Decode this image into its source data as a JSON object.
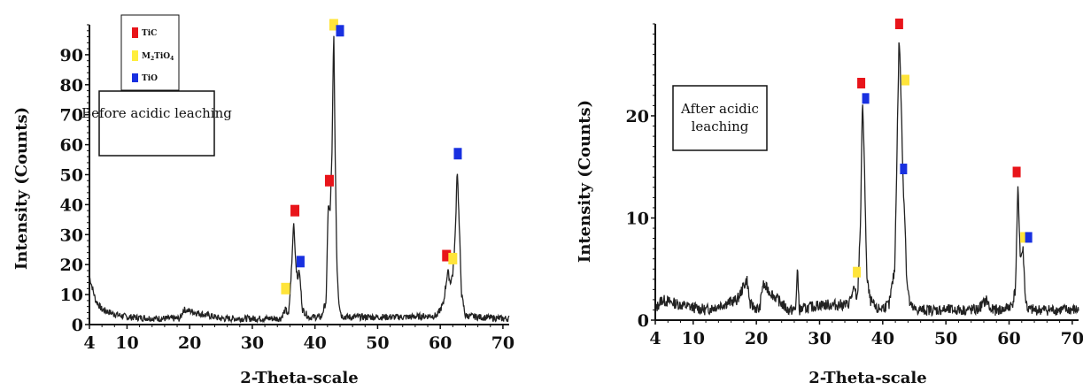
{
  "chart_data": [
    {
      "type": "line",
      "annotation": [
        "Before acidic leaching"
      ],
      "xlabel": "2-Theta-scale",
      "ylabel": "Intensity (Counts)",
      "xlim": [
        4,
        71
      ],
      "ylim": [
        0,
        100
      ],
      "xticks": [
        "4",
        "10",
        "20",
        "30",
        "40",
        "50",
        "60",
        "70"
      ],
      "yticks": [
        "0",
        "10",
        "20",
        "30",
        "40",
        "50",
        "60",
        "70",
        "80",
        "90"
      ],
      "legend": {
        "position": "top-left",
        "entries": [
          {
            "label_main": "TiC",
            "label_sub": "",
            "color": "#e8141a"
          },
          {
            "label_main": "M",
            "label_sub": "2",
            "label_main2": "TiO",
            "label_sub2": "4",
            "color": "#ffee3c"
          },
          {
            "label_main": "TiO",
            "label_sub": "",
            "color": "#1830e0"
          }
        ]
      },
      "series": [
        {
          "line_color": "#222222",
          "x": [
            4,
            4.5,
            5,
            6,
            8,
            10,
            15,
            18.5,
            19,
            25,
            30,
            34.5,
            35.3,
            35.8,
            36.3,
            36.6,
            36.9,
            37.2,
            37.5,
            38,
            39,
            41,
            41.8,
            42.1,
            42.4,
            42.7,
            43.0,
            43.2,
            43.5,
            43.8,
            44.2,
            45,
            50,
            55,
            59.5,
            60.5,
            61.2,
            61.6,
            62.0,
            62.4,
            62.7,
            63.0,
            63.4,
            64,
            66,
            70,
            71
          ],
          "y": [
            16,
            12,
            8,
            5,
            3.5,
            2.5,
            2,
            2,
            5,
            2,
            2,
            2,
            5,
            3,
            20,
            35,
            22,
            15,
            18,
            5,
            2.5,
            2.5,
            8,
            40,
            37,
            55,
            99,
            60,
            20,
            8,
            3,
            2.5,
            2.5,
            2.5,
            3,
            7,
            18,
            14,
            17,
            30,
            53,
            35,
            10,
            3,
            2.5,
            2,
            2
          ]
        }
      ],
      "markers": [
        {
          "label": "TiC",
          "x": 36.8,
          "y": 38
        },
        {
          "label": "TiO",
          "x": 37.7,
          "y": 21
        },
        {
          "label": "M2TiO4",
          "x": 35.3,
          "y": 12
        },
        {
          "label": "TiC",
          "x": 42.3,
          "y": 48
        },
        {
          "label": "M2TiO4",
          "x": 43.0,
          "y": 100
        },
        {
          "label": "TiO",
          "x": 44.0,
          "y": 98
        },
        {
          "label": "TiC",
          "x": 61.0,
          "y": 23
        },
        {
          "label": "M2TiO4",
          "x": 62.0,
          "y": 22
        },
        {
          "label": "TiO",
          "x": 62.8,
          "y": 57
        }
      ]
    },
    {
      "type": "line",
      "annotation": [
        "After acidic",
        "leaching"
      ],
      "xlabel": "2-Theta-scale",
      "ylabel": "Intensity (Counts)",
      "xlim": [
        4,
        71
      ],
      "ylim": [
        0,
        29
      ],
      "xticks": [
        "4",
        "10",
        "20",
        "30",
        "40",
        "50",
        "60",
        "70"
      ],
      "yticks": [
        "0",
        "10",
        "20"
      ],
      "series": [
        {
          "line_color": "#222222",
          "x": [
            4,
            5,
            8,
            12,
            17,
            18.5,
            19,
            20.5,
            21,
            25,
            26.2,
            26.5,
            26.8,
            30,
            34.5,
            35.5,
            36,
            36.5,
            36.8,
            37.1,
            37.5,
            38,
            39,
            41,
            41.9,
            42.3,
            42.6,
            42.9,
            43.2,
            43.5,
            43.8,
            44.3,
            45,
            50,
            55,
            56.5,
            57,
            59,
            60.5,
            61.0,
            61.4,
            61.8,
            62.2,
            62.6,
            63,
            63.5,
            64.5,
            66,
            70,
            71
          ],
          "y": [
            1,
            2,
            1.5,
            1,
            2,
            4,
            1.5,
            1,
            3.5,
            1,
            1,
            5,
            1,
            1.5,
            1.5,
            3,
            2,
            10,
            22,
            15,
            4,
            2,
            1,
            1.5,
            5,
            18,
            28,
            22,
            14,
            10,
            4,
            1.5,
            1,
            1,
            1,
            2,
            1,
            1,
            1.5,
            3,
            13,
            6,
            7,
            2,
            1,
            1,
            1,
            1,
            1,
            1
          ]
        }
      ],
      "markers": [
        {
          "label": "M2TiO4",
          "x": 35.9,
          "y": 4.7
        },
        {
          "label": "TiC",
          "x": 36.6,
          "y": 23.2
        },
        {
          "label": "TiO",
          "x": 37.3,
          "y": 21.7
        },
        {
          "label": "TiC",
          "x": 42.6,
          "y": 29.0
        },
        {
          "label": "M2TiO4",
          "x": 43.6,
          "y": 23.5
        },
        {
          "label": "TiO",
          "x": 43.3,
          "y": 14.8
        },
        {
          "label": "TiC",
          "x": 61.2,
          "y": 14.5
        },
        {
          "label": "M2TiO4",
          "x": 62.4,
          "y": 8.1
        },
        {
          "label": "TiO",
          "x": 63.1,
          "y": 8.1
        }
      ]
    }
  ]
}
